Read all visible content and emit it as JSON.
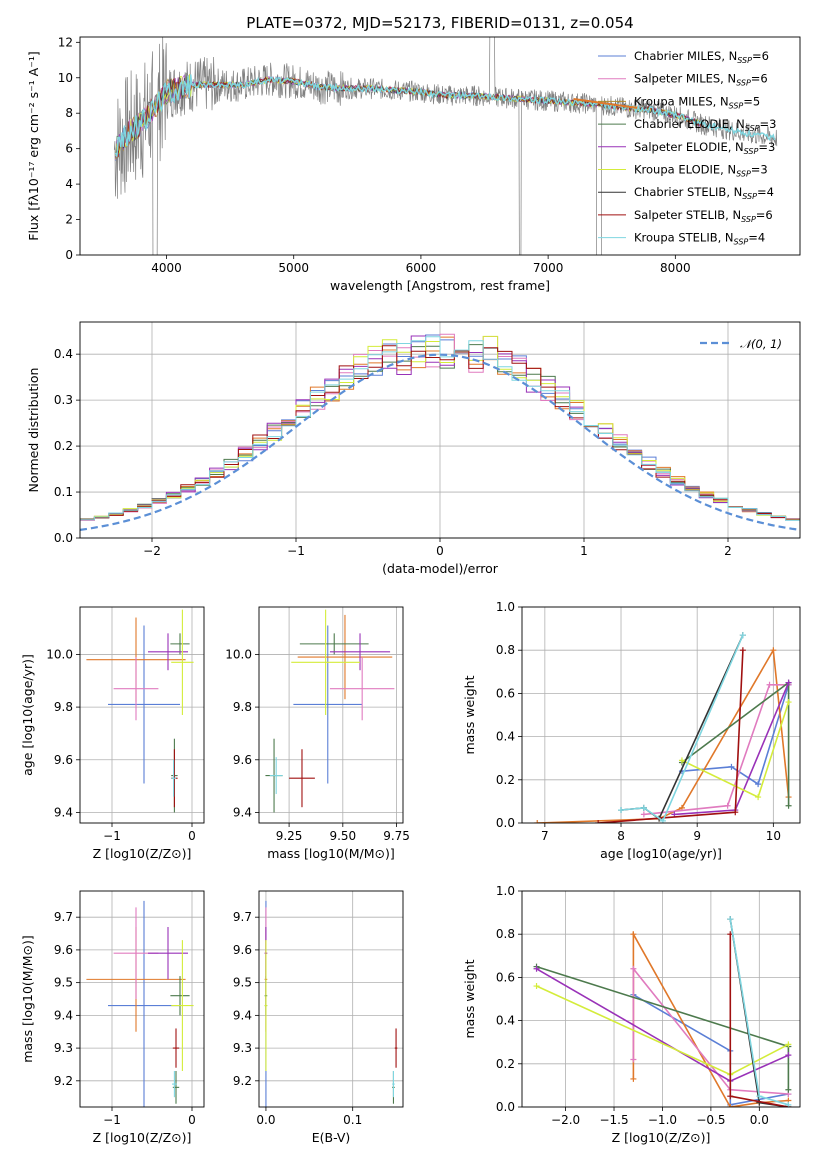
{
  "chart_data": [
    {
      "type": "line",
      "title": "PLATE=0372, MJD=52173, FIBERID=0131, z=0.054",
      "xlabel": "wavelength [Angstrom, rest frame]",
      "ylabel": "Flux [fλ10⁻¹⁷ erg cm⁻² s⁻¹ A⁻¹]",
      "xlim": [
        3320,
        8980
      ],
      "ylim": [
        0,
        12.3
      ],
      "xticks": [
        4000,
        5000,
        6000,
        7000,
        8000
      ],
      "yticks": [
        0,
        2,
        4,
        6,
        8,
        10,
        12
      ],
      "legend_position": "upper right",
      "series": [
        {
          "name": "Chabrier MILES, N_SSP=6",
          "color": "#5b7fd6"
        },
        {
          "name": "Salpeter MILES, N_SSP=6",
          "color": "#e07bbf"
        },
        {
          "name": "Kroupa MILES, N_SSP=5",
          "color": "#b08a2a"
        },
        {
          "name": "Chabrier ELODIE, N_SSP=3",
          "color": "#4d7a4d"
        },
        {
          "name": "Salpeter ELODIE, N_SSP=3",
          "color": "#9932b8"
        },
        {
          "name": "Kroupa ELODIE, N_SSP=3",
          "color": "#d4ec3a"
        },
        {
          "name": "Chabrier STELIB, N_SSP=4",
          "color": "#333333"
        },
        {
          "name": "Salpeter STELIB, N_SSP=6",
          "color": "#a01010"
        },
        {
          "name": "Kroupa STELIB, N_SSP=4",
          "color": "#7fd6e0"
        }
      ],
      "model_curve": {
        "x": [
          3600,
          3700,
          3800,
          3900,
          4000,
          4200,
          4400,
          4600,
          4800,
          5000,
          5200,
          5400,
          5600,
          5800,
          6000,
          6200,
          6400,
          6600,
          6800,
          7000,
          7200,
          7400,
          7600,
          7800,
          8000,
          8200,
          8400,
          8600,
          8800
        ],
        "y": [
          6.0,
          6.9,
          7.4,
          8.3,
          9.2,
          9.6,
          9.6,
          9.6,
          9.9,
          9.8,
          9.5,
          9.4,
          9.4,
          9.3,
          9.2,
          9.0,
          9.0,
          8.9,
          8.8,
          8.7,
          8.6,
          8.5,
          8.3,
          8.2,
          7.9,
          7.4,
          7.1,
          6.8,
          6.6
        ]
      }
    },
    {
      "type": "step",
      "xlabel": "(data-model)/error",
      "ylabel": "Normed distribution",
      "xlim": [
        -2.5,
        2.5
      ],
      "ylim": [
        0,
        0.47
      ],
      "xticks": [
        -2,
        -1,
        0,
        1,
        2
      ],
      "yticks": [
        0.0,
        0.1,
        0.2,
        0.3,
        0.4
      ],
      "legend": "𝒩(0, 1)",
      "legend_position": "upper right",
      "reference_curve": "N(0,1)"
    },
    {
      "type": "scatter",
      "xlabel": "Z [log10(Z/Z⊙)]",
      "ylabel": "age  [log10(age/yr)]",
      "xlim": [
        -1.4,
        0.15
      ],
      "ylim": [
        9.36,
        10.18
      ],
      "xticks": [
        -1,
        0
      ],
      "yticks": [
        9.4,
        9.6,
        9.8,
        10.0
      ],
      "points": [
        {
          "x": -0.6,
          "y": 9.81,
          "xerr": 0.45,
          "yerr": 0.3,
          "color": "#5b7fd6"
        },
        {
          "x": -0.7,
          "y": 9.98,
          "xerr": 0.62,
          "yerr": 0.16,
          "color": "#e0782a"
        },
        {
          "x": -0.7,
          "y": 9.87,
          "xerr": 0.28,
          "yerr": 0.12,
          "color": "#e07bbf"
        },
        {
          "x": -0.15,
          "y": 10.04,
          "xerr": 0.12,
          "yerr": 0.04,
          "color": "#4d7a4d"
        },
        {
          "x": -0.3,
          "y": 10.01,
          "xerr": 0.25,
          "yerr": 0.07,
          "color": "#9932b8"
        },
        {
          "x": -0.12,
          "y": 9.97,
          "xerr": 0.14,
          "yerr": 0.2,
          "color": "#d4ec3a"
        },
        {
          "x": -0.22,
          "y": 9.54,
          "xerr": 0.04,
          "yerr": 0.14,
          "color": "#4d7a4d"
        },
        {
          "x": -0.22,
          "y": 9.53,
          "xerr": 0.04,
          "yerr": 0.11,
          "color": "#a01010"
        },
        {
          "x": -0.23,
          "y": 9.53,
          "xerr": 0.03,
          "yerr": 0.07,
          "color": "#7fd6e0"
        }
      ]
    },
    {
      "type": "scatter",
      "xlabel": "mass [log10(M/M⊙)]",
      "ylabel": "",
      "xlim": [
        9.11,
        9.78
      ],
      "ylim": [
        9.36,
        10.18
      ],
      "xticks": [
        9.25,
        9.5,
        9.75
      ],
      "yticks": [
        9.4,
        9.6,
        9.8,
        10.0
      ],
      "points": [
        {
          "x": 9.43,
          "y": 9.81,
          "xerr": 0.16,
          "yerr": 0.3,
          "color": "#5b7fd6"
        },
        {
          "x": 9.51,
          "y": 9.99,
          "xerr": 0.22,
          "yerr": 0.16,
          "color": "#e0782a"
        },
        {
          "x": 9.59,
          "y": 9.87,
          "xerr": 0.15,
          "yerr": 0.12,
          "color": "#e07bbf"
        },
        {
          "x": 9.46,
          "y": 10.04,
          "xerr": 0.16,
          "yerr": 0.04,
          "color": "#4d7a4d"
        },
        {
          "x": 9.58,
          "y": 10.01,
          "xerr": 0.14,
          "yerr": 0.07,
          "color": "#9932b8"
        },
        {
          "x": 9.42,
          "y": 9.97,
          "xerr": 0.16,
          "yerr": 0.2,
          "color": "#d4ec3a"
        },
        {
          "x": 9.18,
          "y": 9.54,
          "xerr": 0.04,
          "yerr": 0.14,
          "color": "#4d7a4d"
        },
        {
          "x": 9.31,
          "y": 9.53,
          "xerr": 0.06,
          "yerr": 0.11,
          "color": "#a01010"
        },
        {
          "x": 9.19,
          "y": 9.54,
          "xerr": 0.03,
          "yerr": 0.07,
          "color": "#7fd6e0"
        }
      ]
    },
    {
      "type": "line",
      "xlabel": "age  [log10(age/yr)]",
      "ylabel": "mass weight",
      "xlim": [
        6.7,
        10.35
      ],
      "ylim": [
        0,
        1.0
      ],
      "xticks": [
        7,
        8,
        9,
        10
      ],
      "yticks": [
        0.0,
        0.2,
        0.4,
        0.6,
        0.8,
        1.0
      ],
      "series": [
        {
          "color": "#5b7fd6",
          "x": [
            8.8,
            9.45,
            9.8,
            10.2
          ],
          "y": [
            0.24,
            0.26,
            0.18,
            0.64
          ]
        },
        {
          "color": "#e0782a",
          "x": [
            6.9,
            8.5,
            8.8,
            10.0,
            10.2
          ],
          "y": [
            0.0,
            0.02,
            0.07,
            0.8,
            0.12
          ]
        },
        {
          "color": "#e07bbf",
          "x": [
            8.3,
            9.4,
            9.95,
            10.2
          ],
          "y": [
            0.04,
            0.08,
            0.64,
            0.64
          ]
        },
        {
          "color": "#4d7a4d",
          "x": [
            8.8,
            10.2,
            10.2
          ],
          "y": [
            0.28,
            0.65,
            0.08
          ]
        },
        {
          "color": "#9932b8",
          "x": [
            8.7,
            9.5,
            10.2
          ],
          "y": [
            0.04,
            0.06,
            0.65
          ]
        },
        {
          "color": "#d4ec3a",
          "x": [
            8.8,
            9.8,
            10.2
          ],
          "y": [
            0.29,
            0.12,
            0.56
          ]
        },
        {
          "color": "#333333",
          "x": [
            8.0,
            8.3,
            8.5,
            9.6
          ],
          "y": [
            0.06,
            0.07,
            0.02,
            0.87
          ]
        },
        {
          "color": "#a01010",
          "x": [
            7.7,
            9.5,
            9.6
          ],
          "y": [
            0.0,
            0.05,
            0.8
          ]
        },
        {
          "color": "#7fd6e0",
          "x": [
            8.0,
            8.3,
            8.55,
            9.6
          ],
          "y": [
            0.06,
            0.07,
            0.01,
            0.87
          ]
        }
      ]
    },
    {
      "type": "scatter",
      "xlabel": "Z [log10(Z/Z⊙)]",
      "ylabel": "mass [log10(M/M⊙)]",
      "xlim": [
        -1.4,
        0.15
      ],
      "ylim": [
        9.12,
        9.78
      ],
      "xticks": [
        -1,
        0
      ],
      "yticks": [
        9.2,
        9.3,
        9.4,
        9.5,
        9.6,
        9.7
      ],
      "points": [
        {
          "x": -0.6,
          "y": 9.43,
          "xerr": 0.45,
          "yerr": 0.32,
          "color": "#5b7fd6"
        },
        {
          "x": -0.7,
          "y": 9.51,
          "xerr": 0.62,
          "yerr": 0.16,
          "color": "#e0782a"
        },
        {
          "x": -0.7,
          "y": 9.59,
          "xerr": 0.28,
          "yerr": 0.14,
          "color": "#e07bbf"
        },
        {
          "x": -0.15,
          "y": 9.46,
          "xerr": 0.12,
          "yerr": 0.06,
          "color": "#4d7a4d"
        },
        {
          "x": -0.3,
          "y": 9.59,
          "xerr": 0.25,
          "yerr": 0.08,
          "color": "#9932b8"
        },
        {
          "x": -0.12,
          "y": 9.43,
          "xerr": 0.14,
          "yerr": 0.2,
          "color": "#d4ec3a"
        },
        {
          "x": -0.2,
          "y": 9.18,
          "xerr": 0.04,
          "yerr": 0.05,
          "color": "#4d7a4d"
        },
        {
          "x": -0.2,
          "y": 9.3,
          "xerr": 0.04,
          "yerr": 0.06,
          "color": "#a01010"
        },
        {
          "x": -0.22,
          "y": 9.19,
          "xerr": 0.03,
          "yerr": 0.04,
          "color": "#7fd6e0"
        }
      ]
    },
    {
      "type": "scatter",
      "xlabel": "E(B-V)",
      "ylabel": "",
      "xlim": [
        -0.008,
        0.158
      ],
      "ylim": [
        9.12,
        9.78
      ],
      "xticks": [
        0.0,
        0.1
      ],
      "yticks": [
        9.2,
        9.3,
        9.4,
        9.5,
        9.6,
        9.7
      ],
      "points": [
        {
          "x": 0.0,
          "y": 9.43,
          "yerr": 0.32,
          "color": "#5b7fd6"
        },
        {
          "x": 0.0,
          "y": 9.51,
          "yerr": 0.16,
          "color": "#e0782a"
        },
        {
          "x": 0.0,
          "y": 9.59,
          "yerr": 0.14,
          "color": "#e07bbf"
        },
        {
          "x": 0.0,
          "y": 9.46,
          "yerr": 0.06,
          "color": "#4d7a4d"
        },
        {
          "x": 0.0,
          "y": 9.59,
          "yerr": 0.08,
          "color": "#9932b8"
        },
        {
          "x": 0.0,
          "y": 9.43,
          "yerr": 0.2,
          "color": "#d4ec3a"
        },
        {
          "x": 0.147,
          "y": 9.18,
          "yerr": 0.05,
          "color": "#4d7a4d"
        },
        {
          "x": 0.15,
          "y": 9.3,
          "yerr": 0.06,
          "color": "#a01010"
        },
        {
          "x": 0.147,
          "y": 9.19,
          "yerr": 0.04,
          "color": "#7fd6e0"
        }
      ]
    },
    {
      "type": "line",
      "xlabel": "Z [log10(Z/Z⊙)]",
      "ylabel": "mass weight",
      "xlim": [
        -2.45,
        0.42
      ],
      "ylim": [
        0,
        1.0
      ],
      "xticks": [
        -2.0,
        -1.5,
        -1.0,
        -0.5,
        0.0
      ],
      "yticks": [
        0.0,
        0.2,
        0.4,
        0.6,
        0.8,
        1.0
      ],
      "series": [
        {
          "color": "#5b7fd6",
          "x": [
            -1.3,
            -0.3,
            -0.3,
            0.3
          ],
          "y": [
            0.52,
            0.26,
            0.01,
            0.06
          ]
        },
        {
          "color": "#e0782a",
          "x": [
            -1.3,
            -1.3,
            -0.3,
            0.0,
            0.3
          ],
          "y": [
            0.13,
            0.8,
            0.0,
            0.02,
            0.03
          ]
        },
        {
          "color": "#e07bbf",
          "x": [
            -1.3,
            -1.3,
            -0.3,
            0.3
          ],
          "y": [
            0.22,
            0.64,
            0.08,
            0.06
          ]
        },
        {
          "color": "#4d7a4d",
          "x": [
            -2.3,
            0.3,
            0.3
          ],
          "y": [
            0.65,
            0.28,
            0.08
          ]
        },
        {
          "color": "#9932b8",
          "x": [
            -2.3,
            -0.3,
            0.3
          ],
          "y": [
            0.64,
            0.12,
            0.24
          ]
        },
        {
          "color": "#d4ec3a",
          "x": [
            -2.3,
            -0.3,
            0.3
          ],
          "y": [
            0.56,
            0.15,
            0.29
          ]
        },
        {
          "color": "#333333",
          "x": [
            -0.3,
            0.0,
            0.3
          ],
          "y": [
            0.87,
            0.02,
            0.0
          ]
        },
        {
          "color": "#a01010",
          "x": [
            -0.3,
            -0.3,
            0.3
          ],
          "y": [
            0.8,
            0.05,
            0.0
          ]
        },
        {
          "color": "#7fd6e0",
          "x": [
            -0.3,
            0.0,
            0.3
          ],
          "y": [
            0.87,
            0.05,
            0.01
          ]
        }
      ]
    }
  ]
}
